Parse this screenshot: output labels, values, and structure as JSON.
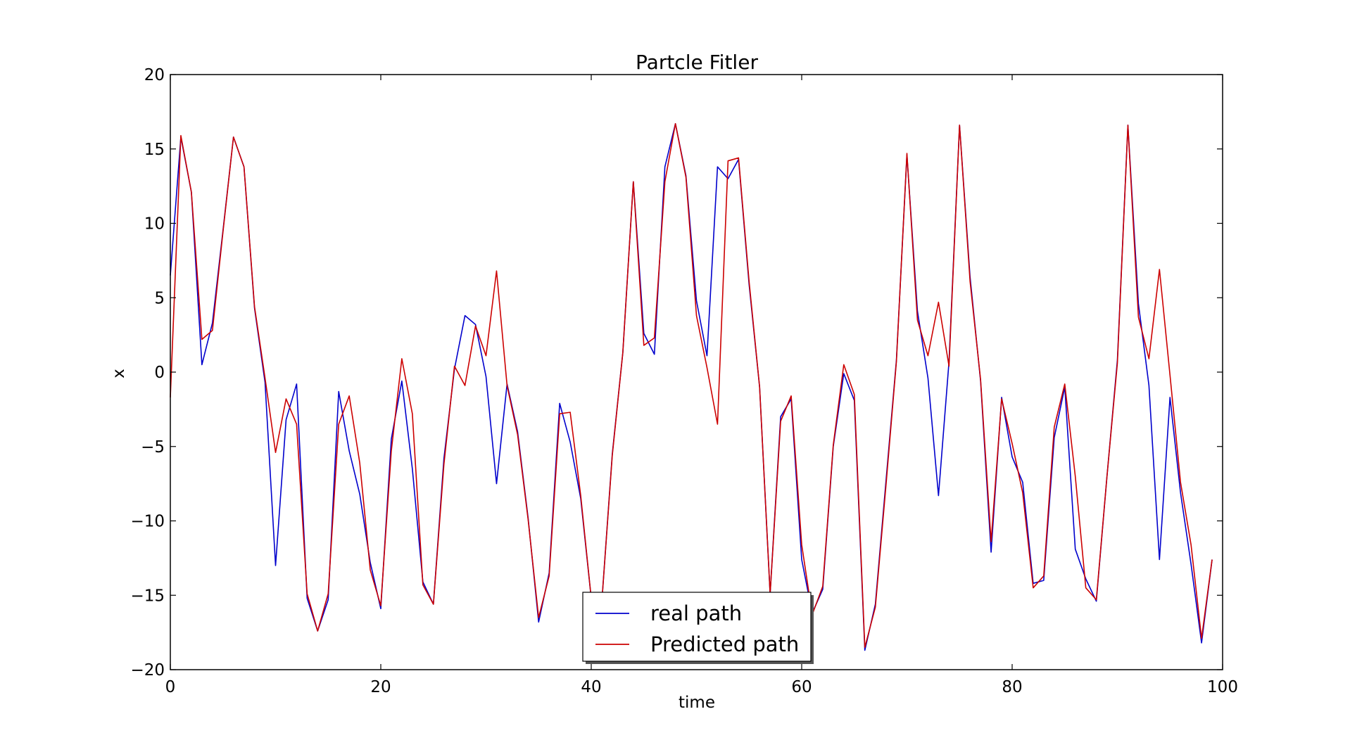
{
  "chart_data": {
    "type": "line",
    "title": "Partcle Fitler",
    "xlabel": "time",
    "ylabel": "x",
    "xlim": [
      0,
      100
    ],
    "ylim": [
      -20,
      20
    ],
    "xticks": [
      0,
      20,
      40,
      60,
      80,
      100
    ],
    "yticks": [
      -20,
      -15,
      -10,
      -5,
      0,
      5,
      10,
      15,
      20
    ],
    "xtick_labels": [
      "0",
      "20",
      "40",
      "60",
      "80",
      "100"
    ],
    "ytick_labels": [
      "−20",
      "−15",
      "−10",
      "−5",
      "0",
      "5",
      "10",
      "15",
      "20"
    ],
    "grid": false,
    "legend_position": "lower-center",
    "x": [
      0,
      1,
      2,
      3,
      4,
      5,
      6,
      7,
      8,
      9,
      10,
      11,
      12,
      13,
      14,
      15,
      16,
      17,
      18,
      19,
      20,
      21,
      22,
      23,
      24,
      25,
      26,
      27,
      28,
      29,
      30,
      31,
      32,
      33,
      34,
      35,
      36,
      37,
      38,
      39,
      40,
      41,
      42,
      43,
      44,
      45,
      46,
      47,
      48,
      49,
      50,
      51,
      52,
      53,
      54,
      55,
      56,
      57,
      58,
      59,
      60,
      61,
      62,
      63,
      64,
      65,
      66,
      67,
      68,
      69,
      70,
      71,
      72,
      73,
      74,
      75,
      76,
      77,
      78,
      79,
      80,
      81,
      82,
      83,
      84,
      85,
      86,
      87,
      88,
      89,
      90,
      91,
      92,
      93,
      94,
      95,
      96,
      97,
      98,
      99
    ],
    "series": [
      {
        "name": "real path",
        "color": "#0000cc",
        "values": [
          6.5,
          15.8,
          12.1,
          0.5,
          3.3,
          9.5,
          15.8,
          13.8,
          4.3,
          -0.7,
          -13.0,
          -3.2,
          -0.8,
          -15.2,
          -17.4,
          -15.3,
          -1.3,
          -5.3,
          -8.2,
          -12.8,
          -15.9,
          -4.5,
          -0.6,
          -6.5,
          -14.1,
          -15.6,
          -5.8,
          0.2,
          3.8,
          3.2,
          -0.3,
          -7.5,
          -0.8,
          -4.0,
          -9.8,
          -16.8,
          -13.5,
          -2.1,
          -4.7,
          -8.5,
          -15.2,
          -15.5,
          -5.5,
          1.3,
          12.8,
          2.6,
          1.2,
          13.8,
          16.7,
          13.2,
          4.8,
          1.1,
          13.8,
          13.0,
          14.3,
          5.9,
          -1.0,
          -14.9,
          -3.0,
          -1.8,
          -12.6,
          -16.2,
          -14.6,
          -5.0,
          -0.1,
          -1.9,
          -18.7,
          -15.6,
          -7.4,
          0.8,
          14.6,
          4.1,
          -0.4,
          -8.3,
          0.7,
          16.6,
          6.4,
          -0.6,
          -12.1,
          -1.7,
          -5.7,
          -7.4,
          -14.2,
          -14.0,
          -4.4,
          -1.0,
          -11.9,
          -13.9,
          -15.4,
          -7.1,
          0.8,
          16.6,
          4.6,
          -0.9,
          -12.6,
          -1.7,
          -8.1,
          -12.9,
          -18.2,
          -12.6
        ]
      },
      {
        "name": "Predicted path",
        "color": "#cc0000",
        "values": [
          -1.7,
          15.9,
          12.1,
          2.2,
          2.8,
          9.4,
          15.8,
          13.8,
          4.4,
          -0.4,
          -5.4,
          -1.8,
          -3.5,
          -14.9,
          -17.4,
          -14.9,
          -3.5,
          -1.6,
          -6.1,
          -13.3,
          -15.7,
          -5.3,
          0.9,
          -2.8,
          -14.3,
          -15.6,
          -6.2,
          0.4,
          -0.9,
          3.1,
          1.1,
          6.8,
          -0.9,
          -4.2,
          -9.9,
          -16.5,
          -13.7,
          -2.8,
          -2.7,
          -8.3,
          -15.2,
          -15.5,
          -5.6,
          1.3,
          12.8,
          1.8,
          2.3,
          12.8,
          16.7,
          13.1,
          3.8,
          0.3,
          -3.5,
          14.2,
          14.4,
          6.1,
          -1.0,
          -14.9,
          -3.3,
          -1.6,
          -11.6,
          -16.3,
          -14.4,
          -4.9,
          0.5,
          -1.5,
          -18.5,
          -15.8,
          -7.7,
          0.7,
          14.7,
          3.5,
          1.1,
          4.7,
          0.4,
          16.6,
          6.1,
          -0.5,
          -11.4,
          -1.8,
          -4.8,
          -8.1,
          -14.5,
          -13.7,
          -3.7,
          -0.8,
          -7.0,
          -14.5,
          -15.3,
          -7.1,
          0.6,
          16.6,
          3.7,
          0.9,
          6.9,
          -0.2,
          -7.4,
          -11.6,
          -17.9,
          -12.6
        ]
      }
    ]
  }
}
